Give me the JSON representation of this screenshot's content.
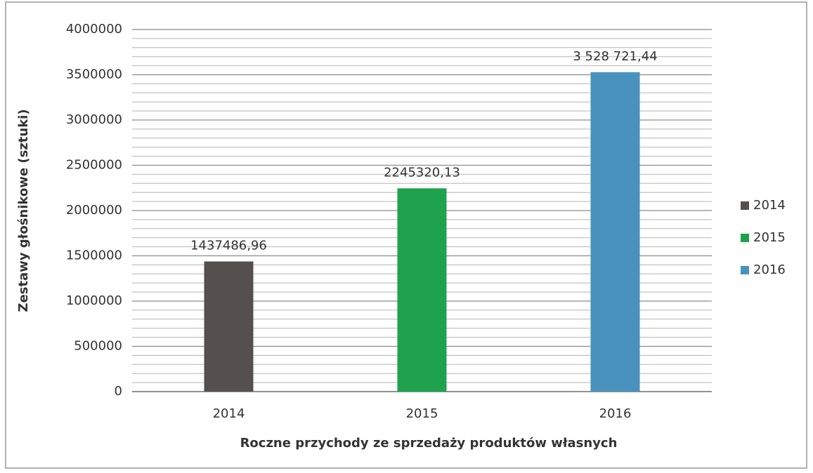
{
  "chart_data": {
    "type": "bar",
    "xlabel": "Roczne przychody ze sprzedaży produktów własnych",
    "ylabel": "Zestawy głośnikowe (sztuki)",
    "categories": [
      "2014",
      "2015",
      "2016"
    ],
    "values": [
      1437486.96,
      2245320.13,
      3528721.44
    ],
    "value_labels": [
      "1437486,96",
      "2245320,13",
      "3 528 721,44"
    ],
    "colors": [
      "#55504d",
      "#1fa24e",
      "#4a92be"
    ],
    "ylim": [
      0,
      4000000
    ],
    "yticks": [
      0,
      500000,
      1000000,
      1500000,
      2000000,
      2500000,
      3000000,
      3500000,
      4000000
    ],
    "minor_grid_step": 100000,
    "grid": true,
    "legend": "right"
  }
}
